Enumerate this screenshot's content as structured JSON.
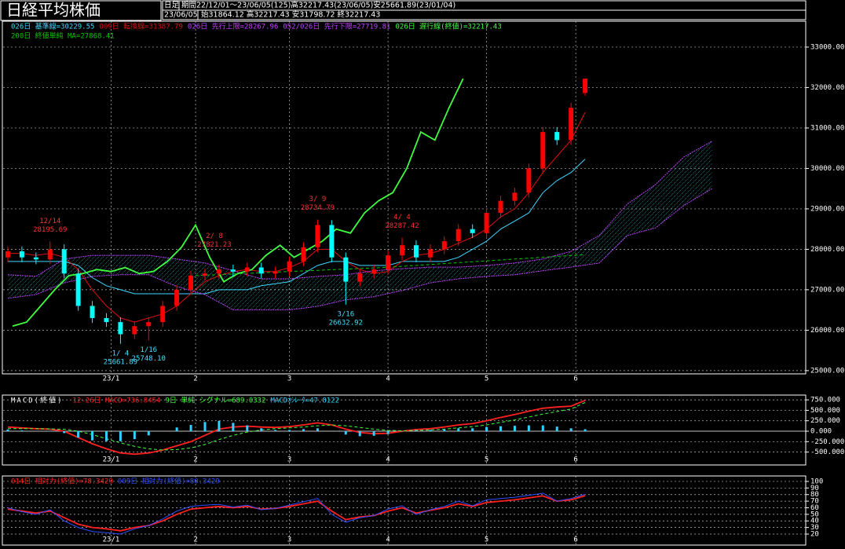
{
  "header": {
    "title": "日経平均株価",
    "mode": "日足",
    "period": "期間22/12/01～23/06/05(125)高32217.43(23/06/05)安25661.89(23/01/04)",
    "date": "23/06/05",
    "ohlc": "始31864.12 高32217.43 安31798.72 終32217.43"
  },
  "chart_data": [
    {
      "type": "candlestick",
      "color_up": "#ff0000",
      "color_down": "#00ffff",
      "grid": true,
      "xlim": [
        -1,
        170
      ],
      "xticks": [
        {
          "value": 22,
          "label": "23/1"
        },
        {
          "value": 40,
          "label": "2"
        },
        {
          "value": 60,
          "label": "3"
        },
        {
          "value": 81,
          "label": "4"
        },
        {
          "value": 102,
          "label": "5"
        },
        {
          "value": 121,
          "label": "6"
        }
      ],
      "ylim": [
        24920,
        33640
      ],
      "yticks": [
        {
          "value": 33000,
          "label": "33000.00"
        },
        {
          "value": 32000,
          "label": "32000.00"
        },
        {
          "value": 31000,
          "label": "31000.00"
        },
        {
          "value": 30000,
          "label": "30000.00"
        },
        {
          "value": 29000,
          "label": "29000.00"
        },
        {
          "value": 28000,
          "label": "28000.00"
        },
        {
          "value": 27000,
          "label": "27000.00"
        },
        {
          "value": 26000,
          "label": "26000.00"
        },
        {
          "value": 25000,
          "label": "25000.00"
        }
      ],
      "x": [
        0,
        3,
        6,
        9,
        12,
        15,
        18,
        21,
        24,
        27,
        30,
        33,
        36,
        39,
        42,
        45,
        48,
        51,
        54,
        57,
        60,
        63,
        66,
        69,
        72,
        75,
        78,
        81,
        84,
        87,
        90,
        93,
        96,
        99,
        102,
        105,
        108,
        111,
        114,
        117,
        120,
        123
      ],
      "open": [
        27800,
        27950,
        27800,
        27750,
        28000,
        27400,
        26600,
        26300,
        26200,
        25900,
        26100,
        26200,
        26600,
        27000,
        27350,
        27400,
        27500,
        27450,
        27550,
        27400,
        27450,
        27700,
        28050,
        28600,
        27800,
        27200,
        27400,
        27500,
        27850,
        28100,
        27800,
        28000,
        28200,
        28500,
        28400,
        28900,
        29200,
        29400,
        30000,
        30900,
        30700,
        31864.12
      ],
      "high": [
        28070,
        28070,
        27920,
        28195.69,
        28120,
        27520,
        26720,
        26420,
        26320,
        26220,
        26320,
        26720,
        27120,
        27470,
        27520,
        27620,
        27620,
        27670,
        27670,
        27570,
        27820,
        28170,
        28734.79,
        28720,
        27920,
        27520,
        27620,
        27970,
        28287.42,
        28220,
        28120,
        28320,
        28620,
        28620,
        29020,
        29320,
        29520,
        30120,
        31020,
        31020,
        31620,
        32217.43
      ],
      "low": [
        27680,
        27680,
        27630,
        27630,
        27280,
        26480,
        26180,
        26080,
        25661.89,
        25780,
        25748.1,
        26080,
        26480,
        26880,
        27230,
        27280,
        27330,
        27330,
        27280,
        27280,
        27330,
        27580,
        27930,
        27680,
        26632.92,
        27080,
        27280,
        27380,
        27730,
        27680,
        27680,
        27880,
        28080,
        28280,
        28280,
        28780,
        29080,
        29280,
        29880,
        30580,
        30580,
        31798.72
      ],
      "close": [
        27950,
        27800,
        27750,
        28000,
        27400,
        26600,
        26300,
        26200,
        25900,
        26100,
        26200,
        26600,
        27000,
        27350,
        27400,
        27500,
        27450,
        27550,
        27400,
        27450,
        27700,
        28050,
        28600,
        27800,
        27200,
        27400,
        27500,
        27850,
        28100,
        27800,
        28000,
        28200,
        28500,
        28400,
        28900,
        29200,
        29400,
        30000,
        30900,
        30700,
        31500,
        32217.43
      ],
      "series": [
        {
          "name": "026日 基準線=30229.55",
          "color": "#40d8ff",
          "style": "line",
          "values": [
            27700,
            27700,
            27700,
            27700,
            27700,
            27600,
            27300,
            27100,
            27000,
            26900,
            26900,
            26900,
            26900,
            26900,
            26900,
            27000,
            27000,
            27000,
            27100,
            27150,
            27200,
            27400,
            27600,
            27700,
            27700,
            27600,
            27600,
            27600,
            27700,
            27700,
            27700,
            27700,
            27800,
            28000,
            28200,
            28500,
            28700,
            28900,
            29400,
            29700,
            29900,
            30229.55
          ]
        },
        {
          "name": "009日 転換線=31387.79",
          "color": "#e01010",
          "style": "line",
          "values": [
            27900,
            27900,
            27850,
            27900,
            27800,
            27500,
            27000,
            26600,
            26300,
            26200,
            26300,
            26400,
            26600,
            26900,
            27200,
            27350,
            27450,
            27500,
            27450,
            27450,
            27550,
            27700,
            28000,
            28000,
            27700,
            27500,
            27400,
            27450,
            27700,
            27850,
            27900,
            28000,
            28150,
            28300,
            28500,
            28800,
            29000,
            29400,
            29900,
            30300,
            30700,
            31387.79
          ]
        },
        {
          "name": "026日 先行上限=28267.96",
          "color": "#c040ff",
          "style": "span",
          "x": [
            0,
            6,
            12,
            18,
            24,
            30,
            36,
            42,
            48,
            54,
            60,
            66,
            72,
            78,
            84,
            90,
            96,
            102,
            108,
            114,
            120,
            126,
            132,
            138,
            144,
            150
          ],
          "values": [
            27370,
            27330,
            27760,
            27850,
            27850,
            27850,
            27760,
            27660,
            27470,
            27270,
            27270,
            27330,
            27370,
            27470,
            27520,
            27560,
            27560,
            27600,
            27660,
            27760,
            27950,
            28340,
            29120,
            29600,
            30280,
            30670
          ]
        },
        {
          "name": "052/026日 先行下限=27719.81",
          "color": "#c040ff",
          "style": "span",
          "x": [
            0,
            6,
            12,
            18,
            24,
            30,
            36,
            42,
            48,
            54,
            60,
            66,
            72,
            78,
            84,
            90,
            96,
            102,
            108,
            114,
            120,
            126,
            132,
            138,
            144,
            150
          ],
          "values": [
            26790,
            26880,
            27170,
            27330,
            27370,
            27370,
            27080,
            26880,
            26500,
            26500,
            26500,
            26590,
            26750,
            26830,
            26980,
            27170,
            27270,
            27330,
            27370,
            27470,
            27560,
            27660,
            28340,
            28530,
            29080,
            29500
          ]
        },
        {
          "name": "026日 遅行線(終値)=32217.43",
          "color": "#40ff40",
          "style": "thick",
          "x": [
            1,
            4,
            7,
            10,
            13,
            16,
            19,
            22,
            25,
            28,
            31,
            34,
            37,
            40,
            43,
            46,
            49,
            52,
            55,
            58,
            61,
            64,
            67,
            70,
            73,
            76,
            79,
            82,
            85,
            88,
            91,
            94,
            97
          ],
          "values": [
            26100,
            26200,
            26600,
            27000,
            27350,
            27400,
            27500,
            27450,
            27550,
            27400,
            27450,
            27700,
            28050,
            28600,
            27800,
            27200,
            27400,
            27500,
            27850,
            28100,
            27800,
            28000,
            28200,
            28500,
            28400,
            28900,
            29200,
            29400,
            30000,
            30900,
            30700,
            31500,
            32217.43
          ]
        },
        {
          "name": "200日 終値単純 MA=27868.41",
          "color": "#00c800",
          "style": "dash",
          "x": [
            40,
            60,
            80,
            100,
            123
          ],
          "values": [
            27350,
            27450,
            27550,
            27700,
            27868.41
          ]
        }
      ],
      "annotations": [
        {
          "x": 9,
          "date": "12/14",
          "value": 28195.69,
          "side": "above",
          "color": "#ff3030"
        },
        {
          "x": 44,
          "date": "2/ 8",
          "value": 27821.23,
          "side": "above",
          "color": "#ff3030"
        },
        {
          "x": 66,
          "date": "3/ 9",
          "value": 28734.79,
          "side": "above",
          "color": "#ff3030"
        },
        {
          "x": 84,
          "date": "4/ 4",
          "value": 28287.42,
          "side": "above",
          "color": "#ff3030"
        },
        {
          "x": 24,
          "date": "1/ 4",
          "value": 25661.89,
          "side": "below",
          "color": "#40e0ff"
        },
        {
          "x": 30,
          "date": "1/16",
          "value": 25748.1,
          "value_label": "25748.10",
          "side": "below",
          "color": "#40e0ff"
        },
        {
          "x": 72,
          "date": "3/16",
          "value": 26632.92,
          "side": "below",
          "color": "#40e0ff"
        }
      ]
    },
    {
      "type": "line",
      "title": "MACD(終値)",
      "grid": true,
      "xlim": [
        -1,
        170
      ],
      "ylim": [
        -808,
        865
      ],
      "yticks": [
        {
          "value": 750,
          "label": "750.000"
        },
        {
          "value": 500,
          "label": "500.000"
        },
        {
          "value": 250,
          "label": "250.000"
        },
        {
          "value": 0,
          "label": "0.000"
        },
        {
          "value": -250,
          "label": "-250.000"
        },
        {
          "value": -500,
          "label": "-500.000"
        }
      ],
      "x": [
        0,
        3,
        6,
        9,
        12,
        15,
        18,
        21,
        24,
        27,
        30,
        33,
        36,
        39,
        42,
        45,
        48,
        51,
        54,
        57,
        60,
        63,
        66,
        69,
        72,
        75,
        78,
        81,
        84,
        87,
        90,
        93,
        96,
        99,
        102,
        105,
        108,
        111,
        114,
        117,
        120,
        123
      ],
      "series": [
        {
          "name": "12-26日 MACD=736.8454",
          "color": "#ff2020",
          "style": "thick",
          "values": [
            100,
            80,
            60,
            50,
            0,
            -150,
            -300,
            -420,
            -520,
            -550,
            -520,
            -450,
            -350,
            -250,
            -100,
            50,
            100,
            120,
            100,
            90,
            110,
            150,
            200,
            150,
            50,
            -30,
            -60,
            -50,
            0,
            40,
            60,
            100,
            150,
            180,
            250,
            330,
            400,
            480,
            550,
            580,
            600,
            736.8454
          ]
        },
        {
          "name": "9日 単純 シグナル=689.0332",
          "color": "#40ff40",
          "style": "dash",
          "values": [
            60,
            60,
            60,
            55,
            45,
            0,
            -80,
            -180,
            -280,
            -360,
            -420,
            -450,
            -440,
            -400,
            -320,
            -200,
            -100,
            -20,
            30,
            60,
            80,
            100,
            130,
            150,
            130,
            90,
            50,
            20,
            10,
            20,
            30,
            50,
            80,
            110,
            150,
            210,
            270,
            340,
            410,
            470,
            530,
            689.0332
          ]
        },
        {
          "name": "MACDｵｼﾚｰﾀ=47.8122",
          "color": "#30d0ff",
          "style": "bar",
          "values": [
            40,
            20,
            0,
            -5,
            -45,
            -150,
            -220,
            -240,
            -240,
            -190,
            -100,
            0,
            90,
            150,
            220,
            250,
            200,
            140,
            70,
            30,
            30,
            50,
            70,
            0,
            -80,
            -120,
            -110,
            -70,
            -10,
            20,
            30,
            50,
            70,
            70,
            100,
            120,
            130,
            140,
            140,
            110,
            70,
            47.8122
          ]
        }
      ]
    },
    {
      "type": "line",
      "grid": true,
      "xlim": [
        -1,
        170
      ],
      "ylim": [
        3.3,
        108.3
      ],
      "yticks": [
        100,
        90,
        80,
        70,
        60,
        50,
        40,
        30,
        20
      ],
      "x": [
        0,
        3,
        6,
        9,
        12,
        15,
        18,
        21,
        24,
        27,
        30,
        33,
        36,
        39,
        42,
        45,
        48,
        51,
        54,
        57,
        60,
        63,
        66,
        69,
        72,
        75,
        78,
        81,
        84,
        87,
        90,
        93,
        96,
        99,
        102,
        105,
        108,
        111,
        114,
        117,
        120,
        123
      ],
      "series": [
        {
          "name": "014日 相対力(終値)=78.3429",
          "color": "#ff2020",
          "style": "thick",
          "values": [
            58,
            55,
            52,
            55,
            45,
            35,
            30,
            28,
            25,
            30,
            33,
            40,
            50,
            58,
            60,
            62,
            60,
            62,
            58,
            59,
            62,
            66,
            70,
            55,
            42,
            46,
            48,
            55,
            60,
            52,
            56,
            60,
            66,
            62,
            68,
            70,
            72,
            75,
            78,
            70,
            72,
            78.3429
          ]
        },
        {
          "name": "009日 相対力(終値)=80.3429",
          "color": "#3050ff",
          "style": "line",
          "values": [
            60,
            54,
            50,
            57,
            40,
            30,
            24,
            22,
            20,
            28,
            33,
            43,
            55,
            62,
            64,
            65,
            61,
            64,
            57,
            59,
            64,
            69,
            74,
            50,
            38,
            45,
            48,
            58,
            63,
            50,
            57,
            62,
            70,
            63,
            72,
            74,
            76,
            79,
            82,
            70,
            74,
            80.3429
          ]
        }
      ]
    }
  ]
}
